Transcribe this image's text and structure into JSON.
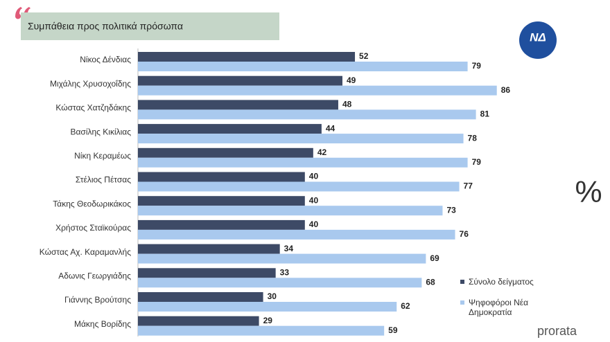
{
  "chart_data": {
    "type": "bar",
    "orientation": "horizontal",
    "title": "Συμπάθεια προς πολιτικά πρόσωπα",
    "categories": [
      "Νίκος Δένδιας",
      "Μιχάλης Χρυσοχοΐδης",
      "Κώστας Χατζηδάκης",
      "Βασίλης Κικίλιας",
      "Νίκη Κεραμέως",
      "Στέλιος Πέτσας",
      "Τάκης Θεοδωρικάκος",
      "Χρήστος Σταϊκούρας",
      "Κώστας Αχ. Καραμανλής",
      "Αδωνις Γεωργιάδης",
      "Γιάννης Βρούτσης",
      "Μάκης Βορίδης"
    ],
    "series": [
      {
        "name": "Σύνολο δείγματος",
        "color": "#3d4a66",
        "values": [
          52,
          49,
          48,
          44,
          42,
          40,
          40,
          40,
          34,
          33,
          30,
          29
        ]
      },
      {
        "name": "Ψηφοφόροι Νέα Δημοκρατία",
        "color": "#a9c9ee",
        "values": [
          79,
          86,
          81,
          78,
          79,
          77,
          73,
          76,
          69,
          68,
          62,
          59
        ]
      }
    ],
    "xlim": [
      0,
      100
    ],
    "logo": "ΝΔ",
    "annotations": [
      "%",
      "prorata"
    ]
  }
}
